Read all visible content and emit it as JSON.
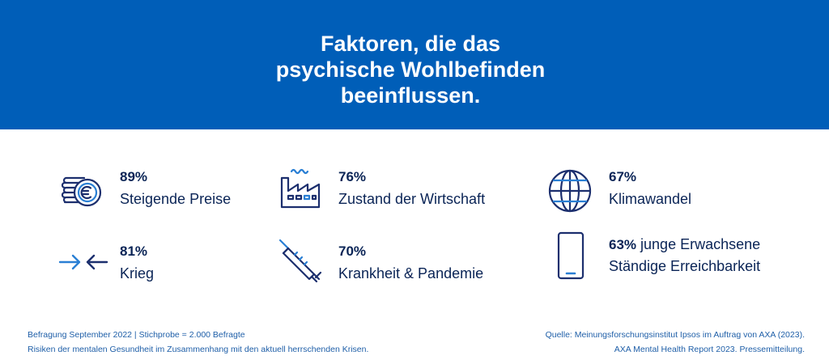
{
  "header": {
    "title_lines": [
      "Faktoren, die das",
      "psychische Wohlbefinden",
      "beeinflussen."
    ]
  },
  "factors": [
    {
      "percent": "89%",
      "label": "Steigende Preise",
      "icon": "coins-euro-icon"
    },
    {
      "percent": "76%",
      "label": "Zustand der Wirtschaft",
      "icon": "factory-icon"
    },
    {
      "percent": "67%",
      "label": "Klimawandel",
      "icon": "globe-icon"
    },
    {
      "percent": "81%",
      "label": "Krieg",
      "icon": "arrows-converging-icon"
    },
    {
      "percent": "70%",
      "label": "Krankheit & Pandemie",
      "icon": "syringe-icon"
    },
    {
      "percent": "63%",
      "percent_suffix": " junge Erwachsene",
      "label": "Ständige Erreichbarkeit",
      "icon": "smartphone-icon"
    }
  ],
  "footer": {
    "left": [
      "Befragung September 2022 | Stichprobe = 2.000 Befragte",
      "Risiken der mentalen Gesundheit im Zusammenhang mit den aktuell herrschenden Krisen."
    ],
    "right": [
      "Quelle: Meinungsforschungsinstitut Ipsos im Auftrag von AXA (2023).",
      "AXA Mental Health Report 2023. Pressemitteilung."
    ]
  },
  "colors": {
    "brand_blue": "#005eb8",
    "dark_navy": "#0a2456",
    "icon_navy": "#1c2f6e",
    "icon_accent": "#2a7fd4"
  }
}
